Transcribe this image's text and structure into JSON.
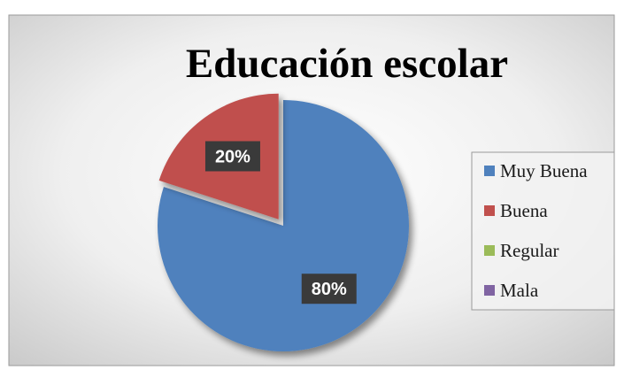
{
  "chart_data": {
    "type": "pie",
    "title": "Educación escolar",
    "categories": [
      "Muy Buena",
      "Buena",
      "Regular",
      "Mala"
    ],
    "values": [
      80,
      20,
      0,
      0
    ],
    "data_labels": [
      "80%",
      "20%",
      "",
      ""
    ],
    "colors": [
      "#4f81bd",
      "#c0504d",
      "#9bbb59",
      "#8064a2"
    ],
    "legend_position": "right",
    "exploded_slice": "Buena"
  }
}
